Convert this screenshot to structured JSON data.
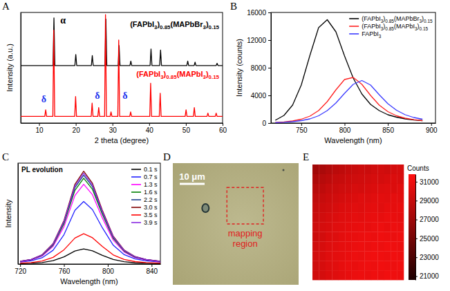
{
  "chart_data": [
    {
      "type": "line",
      "label": "A",
      "x_label": "2 theta (degree)",
      "y_label": "Intensity (a.u.)",
      "xlim": [
        5,
        60
      ],
      "xticks": [
        10,
        20,
        30,
        40,
        50,
        60
      ],
      "ylim": [
        0,
        100
      ],
      "tick_labels": "x",
      "series": [
        {
          "name": "(FAPbI3)0.85(MAPbBr3)0.15",
          "color": "#000000",
          "x": [
            5,
            13.8,
            14.05,
            14.3,
            19.75,
            20.0,
            20.25,
            24.25,
            24.5,
            24.75,
            27.95,
            28.2,
            28.45,
            31.55,
            31.8,
            32.05,
            34.75,
            35.0,
            35.25,
            40.25,
            40.5,
            40.75,
            42.85,
            43.1,
            43.35,
            50.25,
            50.5,
            50.75,
            52.25,
            52.5,
            52.75,
            58.25,
            58.5,
            58.75,
            60
          ],
          "values": [
            52,
            52,
            95,
            52,
            52,
            62,
            52,
            52,
            61,
            52,
            52,
            94,
            52,
            52,
            70,
            52,
            52,
            56,
            52,
            52,
            67,
            52,
            52,
            66,
            52,
            52,
            56,
            52,
            52,
            55,
            52,
            52,
            54,
            52,
            52
          ]
        },
        {
          "name": "(FAPbI3)0.85(MAPbI3)0.15",
          "color": "#ff0000",
          "x": [
            5,
            11.55,
            11.8,
            12.05,
            13.75,
            14.0,
            14.25,
            19.7,
            19.95,
            20.2,
            24.2,
            24.45,
            24.7,
            26.0,
            26.25,
            26.5,
            27.85,
            28.1,
            28.35,
            29.35,
            29.6,
            29.85,
            31.45,
            31.7,
            31.95,
            34.7,
            34.95,
            35.2,
            40.15,
            40.4,
            40.65,
            42.75,
            43.0,
            43.25,
            49.8,
            50.05,
            50.3,
            52.05,
            52.3,
            52.55,
            55.75,
            56.0,
            56.25,
            58.0,
            58.25,
            58.5,
            60
          ],
          "values": [
            6,
            6,
            12,
            6,
            6,
            84,
            6,
            6,
            24,
            6,
            6,
            18,
            6,
            6,
            14,
            6,
            6,
            98,
            6,
            6,
            10,
            6,
            6,
            75,
            6,
            6,
            10,
            6,
            6,
            36,
            6,
            6,
            27,
            6,
            6,
            12,
            6,
            6,
            14,
            6,
            6,
            9,
            6,
            6,
            9,
            6,
            6
          ]
        }
      ],
      "annotations": [
        {
          "text": "α",
          "x": 16.5,
          "y": 90,
          "color": "#000000"
        },
        {
          "text": "δ",
          "x": 11.3,
          "y": 19,
          "color": "#2233ee"
        },
        {
          "text": "δ",
          "x": 25.9,
          "y": 22,
          "color": "#2233ee"
        },
        {
          "text": "δ",
          "x": 33.4,
          "y": 22,
          "color": "#2233ee"
        }
      ]
    },
    {
      "type": "line",
      "label": "B",
      "x_label": "Wavelength (nm)",
      "y_label": "Intensity (counts)",
      "xlim": [
        715,
        905
      ],
      "xticks": [
        750,
        800,
        850,
        900
      ],
      "ylim": [
        0,
        16000
      ],
      "yticks": [
        0,
        4000,
        8000,
        12000,
        16000
      ],
      "legend": "top-right",
      "x": [
        720,
        730,
        740,
        750,
        760,
        770,
        780,
        790,
        800,
        810,
        820,
        830,
        840,
        850,
        860,
        870,
        880,
        890
      ],
      "series": [
        {
          "name": "(FAPbI3)0.85(MAPbBr3)0.15",
          "color": "#000000",
          "values": [
            400,
            1100,
            2600,
            5500,
            9800,
            13800,
            14950,
            13200,
            9700,
            6500,
            4200,
            2700,
            1800,
            1200,
            850,
            600,
            450,
            350
          ]
        },
        {
          "name": "(FAPbI3)0.85(MAPbI3)0.15",
          "color": "#ff2020",
          "values": [
            80,
            150,
            300,
            550,
            1000,
            1800,
            3100,
            4800,
            6300,
            6600,
            5600,
            4000,
            2600,
            1650,
            1050,
            700,
            480,
            350
          ]
        },
        {
          "name": "FAPbI3",
          "color": "#3a3aff",
          "values": [
            60,
            110,
            200,
            350,
            600,
            1050,
            1800,
            2900,
            4300,
            5600,
            6150,
            5500,
            4100,
            2800,
            1850,
            1200,
            800,
            550
          ]
        }
      ]
    },
    {
      "type": "line",
      "label": "C",
      "x_label": "Wavelength (nm)",
      "y_label": "Intensity",
      "legend_title": "PL evolution",
      "xlim": [
        718,
        848
      ],
      "xticks": [
        720,
        760,
        800,
        840
      ],
      "ylim": [
        0,
        100
      ],
      "tick_labels": "x",
      "legend": "top-right",
      "x": [
        720,
        730,
        740,
        750,
        760,
        770,
        778,
        786,
        795,
        805,
        815,
        825,
        835,
        848
      ],
      "series": [
        {
          "name": "0.1 s",
          "color": "#000000",
          "values": [
            0.5,
            0.8,
            1.5,
            3.3,
            7.1,
            12.9,
            15,
            13.1,
            8.7,
            4.5,
            2.3,
            1.2,
            0.8,
            0.5
          ]
        },
        {
          "name": "0.7 s",
          "color": "#2020ff",
          "values": [
            1.9,
            3.1,
            6.2,
            13.6,
            29.1,
            53.3,
            62,
            53.9,
            36,
            18.6,
            9.3,
            5,
            3.1,
            1.9
          ]
        },
        {
          "name": "1.3 s",
          "color": "#ff00ff",
          "values": [
            2.4,
            4,
            7.9,
            17.4,
            37.1,
            67.9,
            79,
            68.7,
            45.8,
            23.7,
            11.9,
            6.3,
            4,
            2.4
          ]
        },
        {
          "name": "1.6 s",
          "color": "#008000",
          "values": [
            2.6,
            4.3,
            8.5,
            18.7,
            40,
            73.1,
            85,
            74,
            49.3,
            25.5,
            12.8,
            6.8,
            4.3,
            2.6
          ]
        },
        {
          "name": "2.2 s",
          "color": "#1f3f8f",
          "values": [
            2.6,
            4.4,
            8.8,
            19.4,
            41.4,
            75.7,
            88,
            76.6,
            51,
            26.4,
            13.2,
            7,
            4.4,
            2.6
          ]
        },
        {
          "name": "3.0 s",
          "color": "#800000",
          "values": [
            2.8,
            4.6,
            9.2,
            20.2,
            43.2,
            79.1,
            92,
            80,
            53.4,
            27.6,
            13.8,
            7.4,
            4.6,
            2.8
          ]
        },
        {
          "name": "3.5 s",
          "color": "#ff0000",
          "values": [
            0.9,
            1.5,
            3,
            6.6,
            14.1,
            25.8,
            30,
            26.1,
            17.4,
            9,
            4.5,
            2.4,
            1.5,
            0.9
          ]
        },
        {
          "name": "3.9 s",
          "color": "#8a2be2",
          "values": [
            2.7,
            4.5,
            9,
            19.8,
            42.3,
            77.4,
            90,
            78.3,
            52.2,
            27,
            13.5,
            7.2,
            4.5,
            2.7
          ]
        }
      ]
    },
    {
      "type": "image",
      "label": "D",
      "scale_bar": "10 μm",
      "annotation": "mapping region"
    },
    {
      "type": "heatmap",
      "label": "E",
      "cells": [
        [
          27200,
          27600,
          28000,
          28400,
          28600,
          28900,
          29100,
          29300,
          29200,
          29500,
          29600,
          29400,
          29700,
          29800
        ],
        [
          27800,
          28200,
          28500,
          28900,
          29000,
          29300,
          29400,
          29500,
          29600,
          29800,
          29700,
          29900,
          30000,
          29900
        ],
        [
          28300,
          28600,
          29000,
          29200,
          29400,
          29500,
          29800,
          29700,
          29900,
          30000,
          30100,
          30200,
          30000,
          30300
        ],
        [
          28700,
          29000,
          29300,
          29500,
          29700,
          29900,
          30000,
          30200,
          30100,
          30300,
          30400,
          30300,
          30500,
          30400
        ],
        [
          29000,
          29300,
          29500,
          29800,
          30000,
          30100,
          30300,
          30200,
          30400,
          30500,
          30300,
          30600,
          30500,
          30700
        ],
        [
          29200,
          29500,
          29800,
          30000,
          30200,
          30300,
          30500,
          30400,
          30600,
          30700,
          30600,
          30800,
          30700,
          30600
        ],
        [
          29400,
          29700,
          29900,
          30200,
          30300,
          30500,
          30600,
          30700,
          30600,
          30800,
          30900,
          30700,
          30900,
          30800
        ],
        [
          29300,
          29600,
          30000,
          30100,
          30400,
          30600,
          30700,
          30800,
          30900,
          30800,
          31000,
          30900,
          30800,
          31000
        ],
        [
          29500,
          29800,
          30100,
          30300,
          30500,
          30600,
          30800,
          30900,
          30800,
          31000,
          30900,
          31100,
          31000,
          30900
        ],
        [
          29600,
          29900,
          30200,
          30400,
          30500,
          30700,
          30900,
          30800,
          31000,
          31100,
          31000,
          30900,
          31100,
          31000
        ],
        [
          29400,
          29800,
          30100,
          30300,
          30600,
          30800,
          30700,
          30900,
          31000,
          30900,
          31100,
          31000,
          30900,
          31100
        ],
        [
          29500,
          29700,
          30000,
          30200,
          30400,
          30600,
          30800,
          30900,
          30800,
          31000,
          30900,
          31100,
          31000,
          30900
        ]
      ],
      "colorbar": {
        "range": [
          20600,
          31800
        ],
        "ticks": [
          21000,
          23000,
          25000,
          27000,
          29000,
          31000
        ],
        "label": "Counts"
      }
    }
  ]
}
